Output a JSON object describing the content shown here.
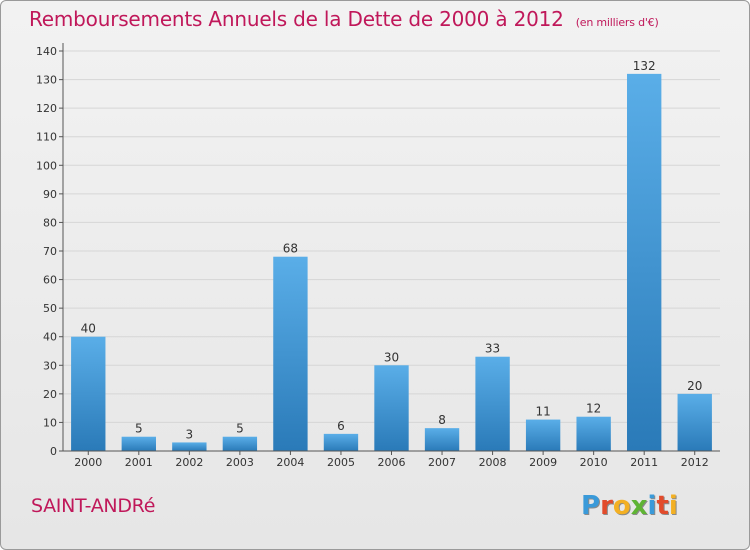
{
  "title": "Remboursements Annuels de la Dette de 2000 à 2012",
  "unit_label": "(en milliers d'€)",
  "town": "SAINT-ANDRé",
  "logo": {
    "letters": [
      "P",
      "r",
      "o",
      "x",
      "i",
      "t",
      "i"
    ],
    "colors": [
      "#3a9ad9",
      "#e24b2b",
      "#f3b023",
      "#5fb434",
      "#3a9ad9",
      "#e24b2b",
      "#f3b023"
    ]
  },
  "colors": {
    "bar_top": "#5aaee8",
    "bar_bottom": "#2a7ab8",
    "accent": "#c0185a"
  },
  "chart_data": {
    "type": "bar",
    "categories": [
      "2000",
      "2001",
      "2002",
      "2003",
      "2004",
      "2005",
      "2006",
      "2007",
      "2008",
      "2009",
      "2010",
      "2011",
      "2012"
    ],
    "values": [
      40,
      5,
      3,
      5,
      68,
      6,
      30,
      8,
      33,
      11,
      12,
      132,
      20
    ],
    "ylim": [
      0,
      140
    ],
    "yticks": [
      0,
      10,
      20,
      30,
      40,
      50,
      60,
      70,
      80,
      90,
      100,
      110,
      120,
      130,
      140
    ],
    "grid": true,
    "data_labels": true
  }
}
